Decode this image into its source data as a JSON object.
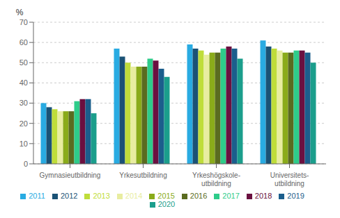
{
  "chart_data": {
    "type": "bar",
    "ylabel": "%",
    "categories": [
      "Gymnasieutbildning",
      "Yrkesutbildning",
      "Yrkeshögskole-\nutbildning",
      "Universitets-\nutbildning"
    ],
    "series": [
      {
        "name": "2011",
        "color": "#29ABE2",
        "values": [
          30,
          57,
          59,
          61
        ]
      },
      {
        "name": "2012",
        "color": "#1A5276",
        "values": [
          28,
          53,
          57,
          58
        ]
      },
      {
        "name": "2013",
        "color": "#BFDD3A",
        "values": [
          27,
          50,
          56,
          57
        ]
      },
      {
        "name": "2014",
        "color": "#E8EDA0",
        "values": [
          26,
          48,
          54,
          56
        ]
      },
      {
        "name": "2015",
        "color": "#8AAB1A",
        "values": [
          26,
          48,
          55,
          55
        ]
      },
      {
        "name": "2016",
        "color": "#5A6B20",
        "values": [
          26,
          48,
          55,
          55
        ]
      },
      {
        "name": "2017",
        "color": "#2ECC8A",
        "values": [
          31,
          52,
          57,
          56
        ]
      },
      {
        "name": "2018",
        "color": "#6B1040",
        "values": [
          32,
          51,
          58,
          56
        ]
      },
      {
        "name": "2019",
        "color": "#1B5E8C",
        "values": [
          32,
          47,
          57,
          55
        ]
      },
      {
        "name": "2020",
        "color": "#1B9E8C",
        "values": [
          25,
          43,
          52,
          50
        ]
      }
    ],
    "ylim": [
      0,
      70
    ],
    "yticks": [
      0,
      10,
      20,
      30,
      40,
      50,
      60,
      70
    ],
    "grid": true,
    "legend": "bottom"
  }
}
